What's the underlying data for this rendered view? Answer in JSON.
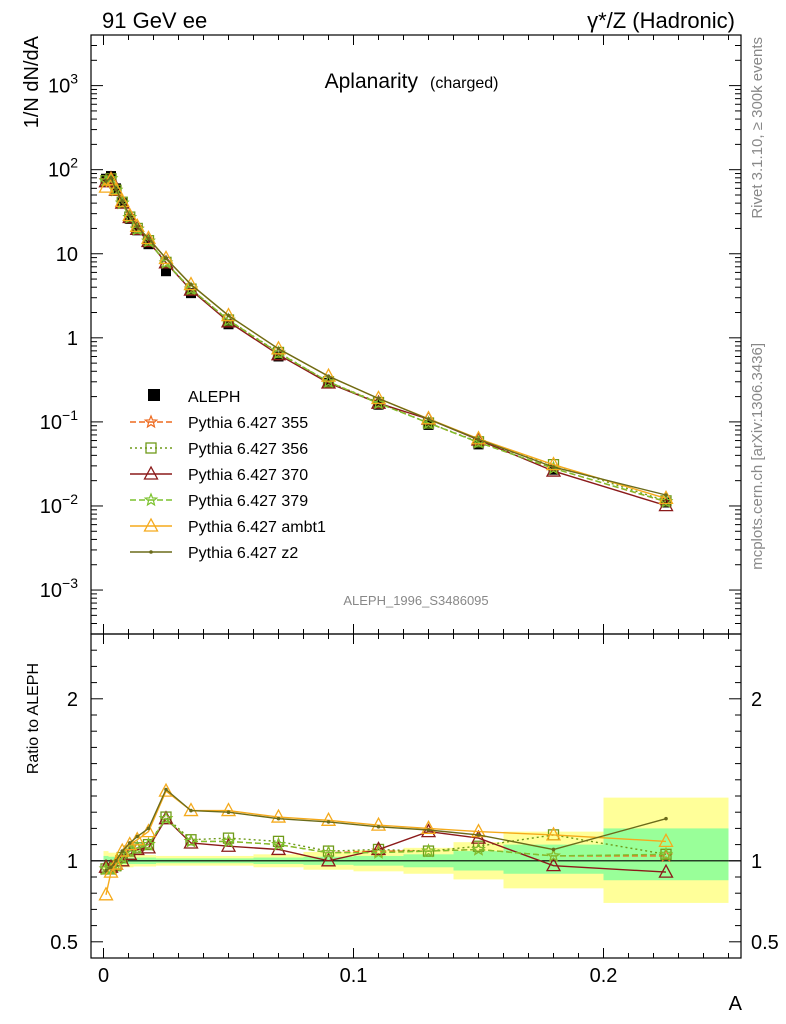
{
  "header": {
    "left": "91 GeV ee",
    "right": "γ*/Z (Hadronic)"
  },
  "side_labels": {
    "rivet": "Rivet 3.1.10, ≥ 300k events",
    "mcplots": "mcplots.cern.ch [arXiv:1306.3436]"
  },
  "watermark": "ALEPH_1996_S3486095",
  "chart_data": [
    {
      "type": "line",
      "title": "Aplanarity",
      "subtitle": "(charged)",
      "ylabel": "1/N dN/dA",
      "xlabel": "",
      "xlim": [
        -0.005,
        0.255
      ],
      "ylim": [
        0.0003,
        4000
      ],
      "yscale": "log",
      "yticks": [
        {
          "value": 0.001,
          "base": "10",
          "exp": "−3"
        },
        {
          "value": 0.01,
          "base": "10",
          "exp": "−2"
        },
        {
          "value": 0.1,
          "base": "10",
          "exp": "−1"
        },
        {
          "value": 1,
          "base": "1",
          "exp": ""
        },
        {
          "value": 10,
          "base": "10",
          "exp": ""
        },
        {
          "value": 100,
          "base": "10",
          "exp": "2"
        },
        {
          "value": 1000,
          "base": "10",
          "exp": "3"
        }
      ],
      "legend_position": "lower-left",
      "x": [
        0.001,
        0.003,
        0.005,
        0.0075,
        0.0105,
        0.0135,
        0.018,
        0.025,
        0.035,
        0.05,
        0.07,
        0.09,
        0.11,
        0.13,
        0.15,
        0.18,
        0.225
      ],
      "data": {
        "name": "ALEPH",
        "values": [
          78,
          84,
          60,
          40,
          26,
          19,
          13,
          6.2,
          3.4,
          1.45,
          0.6,
          0.29,
          0.16,
          0.092,
          0.054,
          0.027,
          0.011
        ]
      },
      "series": [
        {
          "name": "Pythia 6.427 355",
          "color": "#ee6a1f",
          "dash": "6,3",
          "marker": "star",
          "values": [
            74,
            78,
            57,
            40,
            27,
            19.7,
            14.2,
            7.8,
            3.8,
            1.62,
            0.66,
            0.3,
            0.168,
            0.097,
            0.057,
            0.028,
            0.0112
          ]
        },
        {
          "name": "Pythia 6.427 356",
          "color": "#6f9a1a",
          "dash": "2,3",
          "marker": "open-square",
          "values": [
            74,
            78,
            57,
            41,
            27.3,
            20,
            14.3,
            7.9,
            3.8,
            1.63,
            0.67,
            0.3,
            0.17,
            0.097,
            0.058,
            0.031,
            0.0115
          ]
        },
        {
          "name": "Pythia 6.427 370",
          "color": "#8b1a1a",
          "dash": "",
          "marker": "open-triangle",
          "values": [
            72,
            78,
            57,
            40,
            27,
            19.5,
            14,
            7.8,
            3.7,
            1.55,
            0.63,
            0.29,
            0.167,
            0.108,
            0.061,
            0.026,
            0.0101
          ]
        },
        {
          "name": "Pythia 6.427 379",
          "color": "#7cc22e",
          "dash": "6,3",
          "marker": "star",
          "values": [
            73,
            78,
            57,
            40,
            27,
            19.5,
            14.1,
            7.8,
            3.8,
            1.62,
            0.66,
            0.3,
            0.166,
            0.097,
            0.057,
            0.028,
            0.0113
          ]
        },
        {
          "name": "Pythia 6.427 ambt1",
          "color": "#f5aa1c",
          "dash": "",
          "marker": "open-triangle",
          "values": [
            62,
            76,
            58,
            42,
            28.5,
            21.2,
            15.2,
            8.8,
            4.3,
            1.84,
            0.74,
            0.35,
            0.19,
            0.109,
            0.063,
            0.031,
            0.0123
          ]
        },
        {
          "name": "Pythia 6.427 z2",
          "color": "#6b6b1a",
          "dash": "",
          "marker": "dot",
          "values": [
            73,
            80,
            58,
            42,
            28.5,
            21,
            15.2,
            8.8,
            4.3,
            1.84,
            0.74,
            0.35,
            0.19,
            0.108,
            0.062,
            0.029,
            0.0135
          ]
        }
      ]
    },
    {
      "type": "line",
      "title": "",
      "ylabel": "Ratio to ALEPH",
      "xlabel": "A",
      "xlim": [
        -0.005,
        0.255
      ],
      "ylim": [
        0.4,
        2.4
      ],
      "yticks": [
        {
          "value": 0.5,
          "label": "0.5"
        },
        {
          "value": 1,
          "label": "1"
        },
        {
          "value": 2,
          "label": "2"
        }
      ],
      "xticks": [
        {
          "value": 0,
          "label": "0"
        },
        {
          "value": 0.1,
          "label": "0.1"
        },
        {
          "value": 0.2,
          "label": "0.2"
        }
      ],
      "uncertainty_bands": [
        {
          "x0": 0.0,
          "x1": 0.002,
          "inner": [
            0.97,
            1.03
          ],
          "outer": [
            0.94,
            1.06
          ]
        },
        {
          "x0": 0.002,
          "x1": 0.004,
          "inner": [
            0.975,
            1.025
          ],
          "outer": [
            0.95,
            1.05
          ]
        },
        {
          "x0": 0.004,
          "x1": 0.006,
          "inner": [
            0.975,
            1.025
          ],
          "outer": [
            0.95,
            1.05
          ]
        },
        {
          "x0": 0.006,
          "x1": 0.009,
          "inner": [
            0.98,
            1.02
          ],
          "outer": [
            0.96,
            1.04
          ]
        },
        {
          "x0": 0.009,
          "x1": 0.012,
          "inner": [
            0.98,
            1.02
          ],
          "outer": [
            0.96,
            1.04
          ]
        },
        {
          "x0": 0.012,
          "x1": 0.015,
          "inner": [
            0.98,
            1.02
          ],
          "outer": [
            0.965,
            1.035
          ]
        },
        {
          "x0": 0.015,
          "x1": 0.021,
          "inner": [
            0.98,
            1.02
          ],
          "outer": [
            0.965,
            1.035
          ]
        },
        {
          "x0": 0.021,
          "x1": 0.029,
          "inner": [
            0.985,
            1.015
          ],
          "outer": [
            0.97,
            1.03
          ]
        },
        {
          "x0": 0.029,
          "x1": 0.041,
          "inner": [
            0.985,
            1.015
          ],
          "outer": [
            0.97,
            1.03
          ]
        },
        {
          "x0": 0.041,
          "x1": 0.06,
          "inner": [
            0.985,
            1.015
          ],
          "outer": [
            0.97,
            1.03
          ]
        },
        {
          "x0": 0.06,
          "x1": 0.08,
          "inner": [
            0.98,
            1.02
          ],
          "outer": [
            0.96,
            1.04
          ]
        },
        {
          "x0": 0.08,
          "x1": 0.1,
          "inner": [
            0.975,
            1.025
          ],
          "outer": [
            0.945,
            1.055
          ]
        },
        {
          "x0": 0.1,
          "x1": 0.12,
          "inner": [
            0.97,
            1.03
          ],
          "outer": [
            0.935,
            1.065
          ]
        },
        {
          "x0": 0.12,
          "x1": 0.14,
          "inner": [
            0.96,
            1.04
          ],
          "outer": [
            0.92,
            1.08
          ]
        },
        {
          "x0": 0.14,
          "x1": 0.16,
          "inner": [
            0.94,
            1.06
          ],
          "outer": [
            0.885,
            1.115
          ]
        },
        {
          "x0": 0.16,
          "x1": 0.2,
          "inner": [
            0.92,
            1.1
          ],
          "outer": [
            0.83,
            1.18
          ]
        },
        {
          "x0": 0.2,
          "x1": 0.25,
          "inner": [
            0.88,
            1.2
          ],
          "outer": [
            0.74,
            1.39
          ]
        }
      ],
      "series": [
        {
          "name": "Pythia 6.427 355",
          "values": [
            0.95,
            0.95,
            0.97,
            1.02,
            1.06,
            1.08,
            1.1,
            1.26,
            1.12,
            1.12,
            1.1,
            1.05,
            1.06,
            1.06,
            1.07,
            1.03,
            1.03
          ]
        },
        {
          "name": "Pythia 6.427 356",
          "values": [
            0.95,
            0.95,
            0.97,
            1.02,
            1.06,
            1.08,
            1.1,
            1.27,
            1.13,
            1.14,
            1.12,
            1.06,
            1.07,
            1.06,
            1.09,
            1.16,
            1.04
          ]
        },
        {
          "name": "Pythia 6.427 370",
          "values": [
            0.96,
            0.96,
            0.98,
            1.0,
            1.04,
            1.07,
            1.08,
            1.26,
            1.11,
            1.09,
            1.07,
            1.0,
            1.07,
            1.18,
            1.14,
            0.97,
            0.93
          ]
        },
        {
          "name": "Pythia 6.427 379",
          "values": [
            0.95,
            0.95,
            0.97,
            1.02,
            1.06,
            1.08,
            1.1,
            1.26,
            1.12,
            1.12,
            1.1,
            1.05,
            1.05,
            1.06,
            1.07,
            1.03,
            1.04
          ]
        },
        {
          "name": "Pythia 6.427 ambt1",
          "values": [
            0.79,
            0.93,
            0.98,
            1.06,
            1.1,
            1.13,
            1.18,
            1.43,
            1.31,
            1.31,
            1.27,
            1.25,
            1.22,
            1.2,
            1.18,
            1.16,
            1.12
          ]
        },
        {
          "name": "Pythia 6.427 z2",
          "values": [
            0.94,
            0.96,
            1.0,
            1.06,
            1.11,
            1.15,
            1.2,
            1.44,
            1.31,
            1.3,
            1.26,
            1.24,
            1.21,
            1.19,
            1.16,
            1.07,
            1.26
          ]
        }
      ]
    }
  ]
}
